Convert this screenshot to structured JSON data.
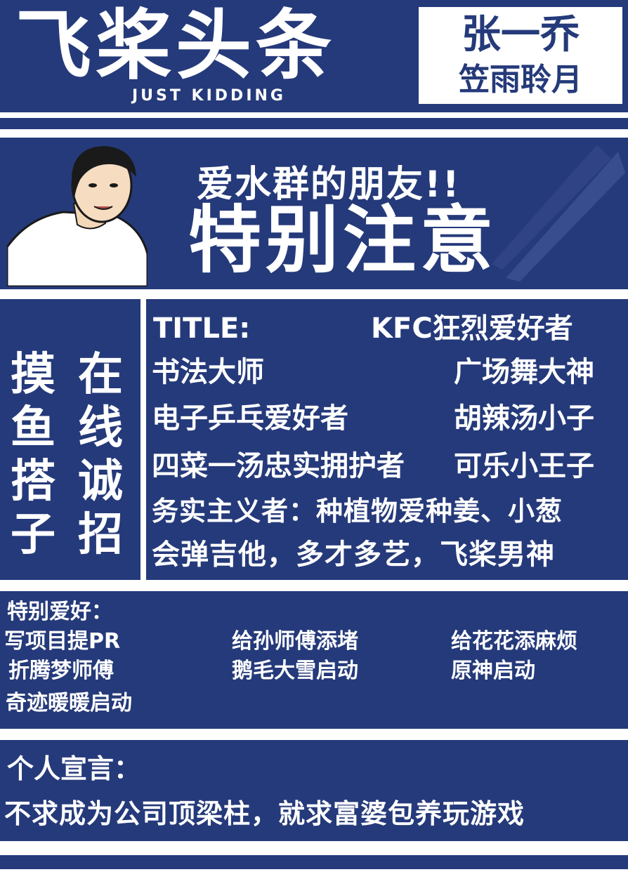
{
  "masthead": {
    "title": "飞桨头条",
    "subtitle": "JUST KIDDING",
    "name": "张一乔",
    "nickname": "笠雨聆月"
  },
  "banner": {
    "line1": "爱水群的朋友!!",
    "line2": "特别注意"
  },
  "recruit": {
    "column_a": "摸鱼搭子",
    "column_b": "在线诚招"
  },
  "titles": {
    "heading": "TITLE:",
    "rows": [
      {
        "left": "书法大师",
        "right": "广场舞大神"
      },
      {
        "left": "电子乒乓爱好者",
        "right": "胡辣汤小子"
      },
      {
        "left": "四菜一汤忠实拥护者",
        "right": "可乐小王子"
      }
    ],
    "first_right": "KFC狂烈爱好者",
    "line_pragmatist": "务实主义者：种植物爱种姜、小葱",
    "line_guitar": "会弹吉他，多才多艺，飞桨男神"
  },
  "hobbies": {
    "heading": "特别爱好：",
    "items": [
      "写项目提PR",
      "给孙师傅添堵",
      "给花花添麻烦",
      "折腾梦师傅",
      "鹅毛大雪启动",
      "原神启动",
      "奇迹暖暖启动"
    ]
  },
  "manifesto": {
    "heading": "个人宣言：",
    "text": "不求成为公司顶梁柱，就求富婆包养玩游戏"
  },
  "colors": {
    "navy": "#253a7a",
    "white": "#ffffff"
  }
}
